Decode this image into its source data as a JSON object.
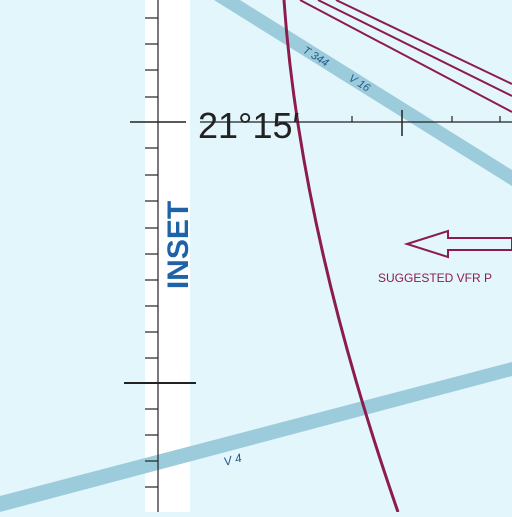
{
  "map": {
    "background_color": "#e3f6fb",
    "neatline_color": "#ffffff",
    "airway_color": "#9ccbdb",
    "airway_label_color": "#1f5a8a",
    "route_color": "#8c1c4c",
    "tick_color": "#222222",
    "inset_label": "INSET",
    "inset_label_color": "#1e63a8",
    "latitude_label": "21°15′",
    "airways": [
      {
        "name": "T 344",
        "label": "T 344",
        "alt_name": "V 16"
      },
      {
        "name": "V 4",
        "label": "V 4"
      }
    ],
    "airway_secondary_label": "V 16",
    "vfr_route_label": "SUGGESTED VFR P",
    "arrow_icon": "left-arrow-icon"
  }
}
